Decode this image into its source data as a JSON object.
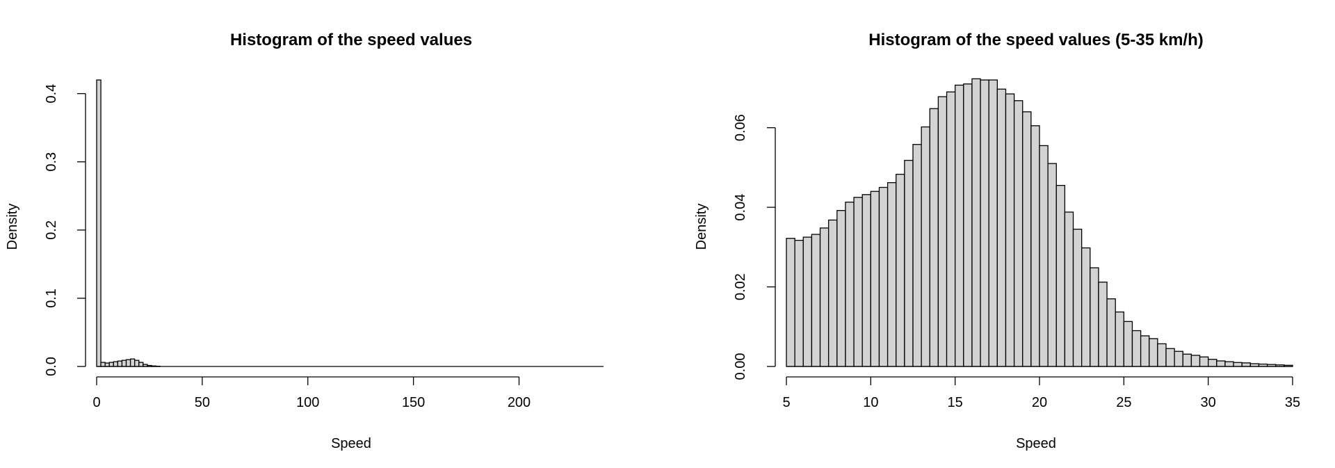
{
  "chart_data": [
    {
      "type": "bar",
      "title": "Histogram of the speed values",
      "xlabel": "Speed",
      "ylabel": "Density",
      "xlim": [
        0,
        240
      ],
      "ylim": [
        0,
        0.42
      ],
      "xticks": [
        "0",
        "50",
        "100",
        "150",
        "200"
      ],
      "yticks": [
        "0.0",
        "0.1",
        "0.2",
        "0.3",
        "0.4"
      ],
      "bin_width": 2,
      "bin_start": 0,
      "values": [
        0.42,
        0.006,
        0.005,
        0.006,
        0.007,
        0.008,
        0.009,
        0.01,
        0.011,
        0.009,
        0.006,
        0.003,
        0.0015,
        0.0008,
        0.0004
      ],
      "axis_extent": [
        0,
        240
      ],
      "grid": false,
      "bar_color": "#d3d3d3"
    },
    {
      "type": "bar",
      "title": "Histogram of the speed values (5-35 km/h)",
      "xlabel": "Speed",
      "ylabel": "Density",
      "xlim": [
        5,
        35
      ],
      "ylim": [
        0,
        0.072
      ],
      "xticks": [
        "5",
        "10",
        "15",
        "20",
        "25",
        "30",
        "35"
      ],
      "yticks": [
        "0.00",
        "0.02",
        "0.04",
        "0.06"
      ],
      "bin_width": 0.5,
      "bin_start": 5,
      "values": [
        0.0322,
        0.0317,
        0.0325,
        0.0332,
        0.0348,
        0.0368,
        0.0392,
        0.0413,
        0.0425,
        0.0432,
        0.044,
        0.045,
        0.0462,
        0.0483,
        0.0518,
        0.0558,
        0.0602,
        0.0648,
        0.0678,
        0.069,
        0.0707,
        0.071,
        0.0723,
        0.072,
        0.072,
        0.0697,
        0.0685,
        0.0668,
        0.064,
        0.0605,
        0.0555,
        0.051,
        0.0455,
        0.0388,
        0.0345,
        0.0298,
        0.0248,
        0.0212,
        0.017,
        0.0137,
        0.0113,
        0.009,
        0.0077,
        0.007,
        0.0057,
        0.0045,
        0.0038,
        0.0031,
        0.0028,
        0.0024,
        0.0018,
        0.0014,
        0.0012,
        0.001,
        0.0009,
        0.0007,
        0.0006,
        0.0005,
        0.0004,
        0.0003
      ],
      "axis_extent": [
        5,
        35
      ],
      "grid": false,
      "bar_color": "#d3d3d3"
    }
  ]
}
